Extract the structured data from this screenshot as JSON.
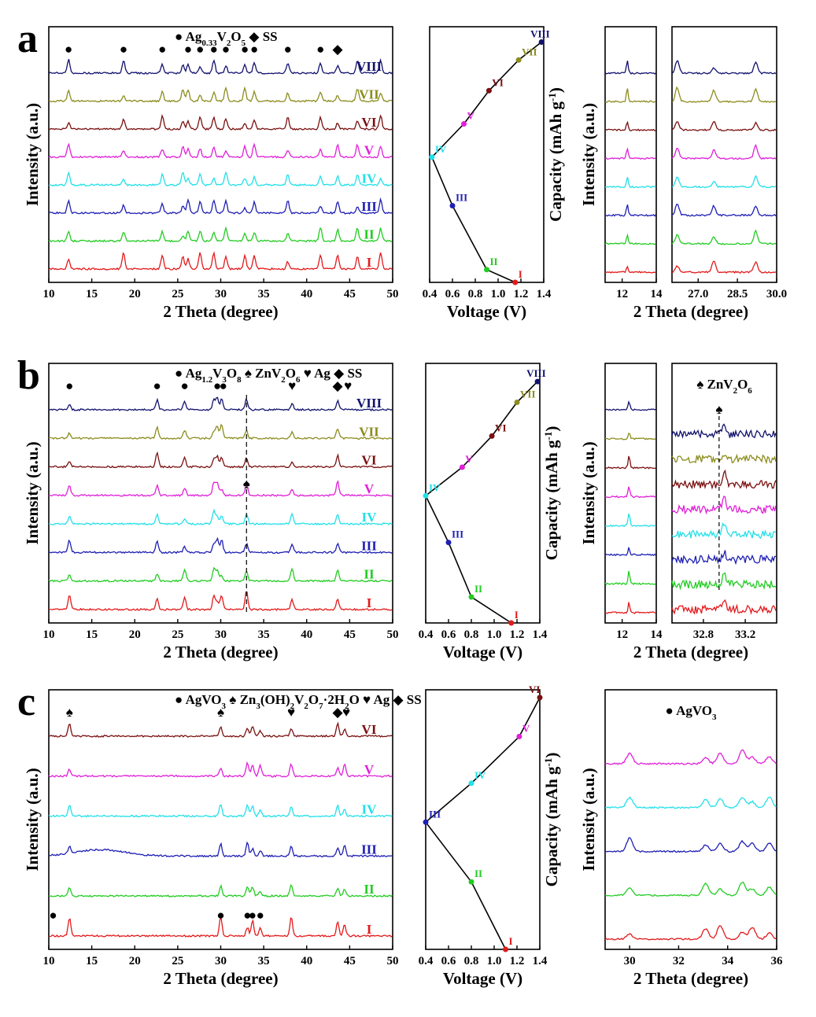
{
  "figure": {
    "shared_labels": {
      "two_theta": "2 Theta (degree)",
      "intensity": "Intensity (a.u.)",
      "voltage": "Voltage  (V)",
      "capacity": "Capacity  (mAh g",
      "capacity_exp": "-1",
      "capacity_close": ")"
    },
    "stage_colors": [
      "#e31a1c",
      "#22cc22",
      "#1f1fb4",
      "#22e0e8",
      "#e020d8",
      "#7a1010",
      "#8c8c1e",
      "#12126e"
    ],
    "panels": [
      {
        "letter": "a",
        "legend_parts": [
          {
            "t": "● Ag",
            "sub": false
          },
          {
            "t": "0.33",
            "sub": true
          },
          {
            "t": "V",
            "sub": false
          },
          {
            "t": "2",
            "sub": true
          },
          {
            "t": "O",
            "sub": false
          },
          {
            "t": "5",
            "sub": true
          },
          {
            "t": "  ◆ SS",
            "sub": false
          }
        ],
        "stages": [
          "I",
          "II",
          "III",
          "IV",
          "V",
          "VI",
          "VII",
          "VIII"
        ],
        "xrd_ticks": [
          "10",
          "15",
          "20",
          "25",
          "30",
          "35",
          "40",
          "45",
          "50"
        ],
        "xrd_peaks": [
          12.3,
          18.7,
          23.2,
          25.6,
          26.2,
          27.6,
          29.2,
          30.6,
          32.8,
          33.9,
          37.8,
          41.6,
          43.6,
          45.9,
          48.6
        ],
        "xrd_markers": [
          {
            "x": 12.3,
            "s": "●"
          },
          {
            "x": 18.7,
            "s": "●"
          },
          {
            "x": 23.2,
            "s": "●"
          },
          {
            "x": 26.2,
            "s": "●"
          },
          {
            "x": 27.6,
            "s": "●"
          },
          {
            "x": 29.2,
            "s": "●"
          },
          {
            "x": 30.6,
            "s": "●"
          },
          {
            "x": 32.8,
            "s": "●"
          },
          {
            "x": 33.9,
            "s": "●"
          },
          {
            "x": 37.8,
            "s": "●"
          },
          {
            "x": 41.6,
            "s": "●"
          },
          {
            "x": 43.6,
            "s": "◆"
          }
        ],
        "volt_ticks": [
          "0.4",
          "0.6",
          "0.8",
          "1.0",
          "1.2",
          "1.4"
        ],
        "volt_points": [
          {
            "label": "I",
            "v": 1.15,
            "c": 0.0
          },
          {
            "label": "II",
            "v": 0.9,
            "c": 0.05
          },
          {
            "label": "III",
            "v": 0.6,
            "c": 0.3
          },
          {
            "label": "IV",
            "v": 0.42,
            "c": 0.49
          },
          {
            "label": "V",
            "v": 0.7,
            "c": 0.62
          },
          {
            "label": "VI",
            "v": 0.92,
            "c": 0.75
          },
          {
            "label": "VII",
            "v": 1.18,
            "c": 0.87
          },
          {
            "label": "VIII",
            "v": 1.38,
            "c": 0.94
          }
        ],
        "zoom1": {
          "ticks": [
            "12",
            "14"
          ],
          "peak": 12.3
        },
        "zoom2": {
          "ticks": [
            "27.0",
            "28.5",
            "30.0"
          ],
          "peaks": [
            26.2,
            27.6,
            29.2
          ]
        }
      },
      {
        "letter": "b",
        "legend_parts": [
          {
            "t": "● Ag",
            "sub": false
          },
          {
            "t": "1.2",
            "sub": true
          },
          {
            "t": "V",
            "sub": false
          },
          {
            "t": "3",
            "sub": true
          },
          {
            "t": "O",
            "sub": false
          },
          {
            "t": "8",
            "sub": true
          },
          {
            "t": " ♠ ZnV",
            "sub": false
          },
          {
            "t": "2",
            "sub": true
          },
          {
            "t": "O",
            "sub": false
          },
          {
            "t": "6",
            "sub": true
          },
          {
            "t": " ♥ Ag  ◆ SS",
            "sub": false
          }
        ],
        "stages": [
          "I",
          "II",
          "III",
          "IV",
          "V",
          "VI",
          "VII",
          "VIII"
        ],
        "xrd_ticks": [
          "10",
          "15",
          "20",
          "25",
          "30",
          "35",
          "40",
          "45",
          "50"
        ],
        "xrd_peaks": [
          12.4,
          22.6,
          25.8,
          29.2,
          29.6,
          30.1,
          33.0,
          38.3,
          43.6
        ],
        "xrd_markers": [
          {
            "x": 12.4,
            "s": "●"
          },
          {
            "x": 22.6,
            "s": "●"
          },
          {
            "x": 25.8,
            "s": "●"
          },
          {
            "x": 29.6,
            "s": "●"
          },
          {
            "x": 30.3,
            "s": "●"
          },
          {
            "x": 38.3,
            "s": "♥"
          },
          {
            "x": 43.6,
            "s": "◆"
          },
          {
            "x": 44.8,
            "s": "♥"
          }
        ],
        "dashed_x": 33.0,
        "volt_ticks": [
          "0.4",
          "0.6",
          "0.8",
          "1.0",
          "1.2",
          "1.4"
        ],
        "volt_points": [
          {
            "label": "I",
            "v": 1.15,
            "c": 0.0
          },
          {
            "label": "II",
            "v": 0.8,
            "c": 0.1
          },
          {
            "label": "III",
            "v": 0.6,
            "c": 0.31
          },
          {
            "label": "IV",
            "v": 0.4,
            "c": 0.49
          },
          {
            "label": "V",
            "v": 0.72,
            "c": 0.6
          },
          {
            "label": "VI",
            "v": 0.98,
            "c": 0.72
          },
          {
            "label": "VII",
            "v": 1.2,
            "c": 0.85
          },
          {
            "label": "VIII",
            "v": 1.38,
            "c": 0.93
          }
        ],
        "zoom1": {
          "ticks": [
            "12",
            "14"
          ],
          "peak": 12.4
        },
        "zoom2": {
          "ticks": [
            "32.8",
            "33.2"
          ],
          "title_parts": [
            {
              "t": "♠ ZnV",
              "sub": false
            },
            {
              "t": "2",
              "sub": true
            },
            {
              "t": "O",
              "sub": false
            },
            {
              "t": "6",
              "sub": true
            }
          ]
        }
      },
      {
        "letter": "c",
        "legend_parts": [
          {
            "t": "● AgVO",
            "sub": false
          },
          {
            "t": "3",
            "sub": true
          },
          {
            "t": " ♠ Zn",
            "sub": false
          },
          {
            "t": "3",
            "sub": true
          },
          {
            "t": "(OH)",
            "sub": false
          },
          {
            "t": "2",
            "sub": true
          },
          {
            "t": "V",
            "sub": false
          },
          {
            "t": "2",
            "sub": true
          },
          {
            "t": "O",
            "sub": false
          },
          {
            "t": "7",
            "sub": true
          },
          {
            "t": "·2H",
            "sub": false
          },
          {
            "t": "2",
            "sub": true
          },
          {
            "t": "O ♥ Ag  ◆ SS",
            "sub": false
          }
        ],
        "stages": [
          "I",
          "II",
          "III",
          "IV",
          "V",
          "VI"
        ],
        "xrd_ticks": [
          "10",
          "15",
          "20",
          "25",
          "30",
          "35",
          "40",
          "45",
          "50"
        ],
        "xrd_peaks": [
          12.4,
          30.0,
          33.1,
          33.7,
          34.6,
          38.2,
          43.6,
          44.4
        ],
        "xrd_markers": [
          {
            "x": 12.4,
            "s": "♠"
          },
          {
            "x": 30.0,
            "s": "♠"
          },
          {
            "x": 38.2,
            "s": "♥"
          },
          {
            "x": 43.6,
            "s": "◆"
          },
          {
            "x": 44.6,
            "s": "♥"
          }
        ],
        "xrd_bottom_markers": [
          10.5,
          30.0,
          33.1,
          33.7,
          34.6
        ],
        "volt_ticks": [
          "0.4",
          "0.6",
          "0.8",
          "1.0",
          "1.2",
          "1.4"
        ],
        "volt_points": [
          {
            "label": "I",
            "v": 1.1,
            "c": 0.0
          },
          {
            "label": "II",
            "v": 0.8,
            "c": 0.26
          },
          {
            "label": "III",
            "v": 0.4,
            "c": 0.49
          },
          {
            "label": "IV",
            "v": 0.8,
            "c": 0.64
          },
          {
            "label": "V",
            "v": 1.22,
            "c": 0.82
          },
          {
            "label": "VI",
            "v": 1.4,
            "c": 0.97
          }
        ],
        "zoom3": {
          "ticks": [
            "30",
            "32",
            "34",
            "36"
          ],
          "title_parts": [
            {
              "t": "●  AgVO",
              "sub": false
            },
            {
              "t": "3",
              "sub": true
            }
          ],
          "peaks": [
            30.0,
            33.1,
            33.7,
            34.6,
            35.0,
            35.7
          ]
        }
      }
    ]
  }
}
